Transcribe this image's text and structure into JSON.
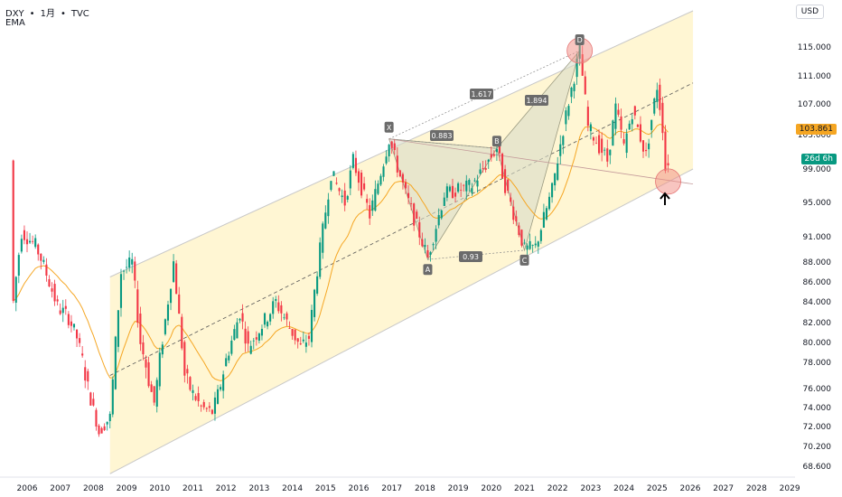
{
  "header": {
    "symbol": "DXY",
    "sep": "•",
    "interval": "1月",
    "source": "TVC",
    "indicator": "EMA"
  },
  "price_unit": "USD",
  "badges": {
    "last_price": "103.861",
    "countdown": "26d 6h"
  },
  "colors": {
    "up": "#26a69a",
    "up_bright": "#089981",
    "down": "#f23645",
    "ema": "#f5a623",
    "channel_fill": "#fff3c4",
    "pattern_fill": "#d9dcc8",
    "circle": "#f28b82"
  },
  "pattern_labels": [
    "X",
    "A",
    "B",
    "C",
    "D"
  ],
  "ratio_labels": [
    "0.883",
    "1.617",
    "1.894",
    "0.93"
  ],
  "chart_data": {
    "type": "candlestick",
    "x_ticks": [
      "2006",
      "2007",
      "2008",
      "2009",
      "2010",
      "2011",
      "2012",
      "2013",
      "2014",
      "2015",
      "2016",
      "2017",
      "2018",
      "2019",
      "2020",
      "2021",
      "2022",
      "2023",
      "2024",
      "2025",
      "2026",
      "2027",
      "2028",
      "2029"
    ],
    "y_ticks": [
      "68.600",
      "70.200",
      "72.000",
      "74.000",
      "76.000",
      "78.000",
      "80.000",
      "82.000",
      "84.000",
      "86.000",
      "88.000",
      "91.000",
      "95.000",
      "99.000",
      "103.000",
      "107.000",
      "111.000",
      "115.000"
    ],
    "ylim": [
      68.0,
      118.5
    ],
    "price_path": [
      {
        "t": "2005-08",
        "p": 84.0
      },
      {
        "t": "2005-11",
        "p": 91.5
      },
      {
        "t": "2006-04",
        "p": 90.0
      },
      {
        "t": "2006-09",
        "p": 86.0
      },
      {
        "t": "2006-12",
        "p": 83.5
      },
      {
        "t": "2007-04",
        "p": 82.5
      },
      {
        "t": "2007-07",
        "p": 80.5
      },
      {
        "t": "2007-11",
        "p": 76.0
      },
      {
        "t": "2008-03",
        "p": 71.5
      },
      {
        "t": "2008-07",
        "p": 73.0
      },
      {
        "t": "2008-11",
        "p": 87.0
      },
      {
        "t": "2009-03",
        "p": 88.0
      },
      {
        "t": "2009-06",
        "p": 80.0
      },
      {
        "t": "2009-11",
        "p": 74.5
      },
      {
        "t": "2010-06",
        "p": 88.0
      },
      {
        "t": "2010-10",
        "p": 77.0
      },
      {
        "t": "2011-04",
        "p": 74.0
      },
      {
        "t": "2011-08",
        "p": 73.5
      },
      {
        "t": "2012-06",
        "p": 83.0
      },
      {
        "t": "2012-09",
        "p": 79.5
      },
      {
        "t": "2013-07",
        "p": 84.0
      },
      {
        "t": "2014-04",
        "p": 79.5
      },
      {
        "t": "2014-07",
        "p": 80.5
      },
      {
        "t": "2015-03",
        "p": 98.5
      },
      {
        "t": "2015-08",
        "p": 95.0
      },
      {
        "t": "2015-11",
        "p": 100.0
      },
      {
        "t": "2016-05",
        "p": 93.5
      },
      {
        "t": "2016-12",
        "p": 102.5
      },
      {
        "t": "2017-06",
        "p": 96.0
      },
      {
        "t": "2018-02",
        "p": 88.5
      },
      {
        "t": "2018-08",
        "p": 96.0
      },
      {
        "t": "2019-06",
        "p": 97.0
      },
      {
        "t": "2020-03",
        "p": 101.5
      },
      {
        "t": "2020-06",
        "p": 97.0
      },
      {
        "t": "2021-01",
        "p": 89.5
      },
      {
        "t": "2021-05",
        "p": 89.8
      },
      {
        "t": "2021-11",
        "p": 96.5
      },
      {
        "t": "2022-09",
        "p": 114.5
      },
      {
        "t": "2022-12",
        "p": 104.0
      },
      {
        "t": "2023-07",
        "p": 100.0
      },
      {
        "t": "2023-10",
        "p": 106.5
      },
      {
        "t": "2024-01",
        "p": 101.5
      },
      {
        "t": "2024-04",
        "p": 106.0
      },
      {
        "t": "2024-09",
        "p": 100.5
      },
      {
        "t": "2025-01",
        "p": 109.5
      },
      {
        "t": "2025-03",
        "p": 104.0
      },
      {
        "t": "2025-04",
        "p": 99.0
      },
      {
        "t": "2025-05",
        "p": 100.0
      }
    ],
    "pattern": {
      "X": {
        "t": "2016-12",
        "p": 102.5
      },
      "A": {
        "t": "2018-02",
        "p": 88.3
      },
      "B": {
        "t": "2020-03",
        "p": 101.4
      },
      "C": {
        "t": "2021-01",
        "p": 89.4
      },
      "D": {
        "t": "2022-09",
        "p": 114.5
      }
    },
    "channel": {
      "lower": [
        {
          "t": "2008-07",
          "p": 68.0
        },
        {
          "t": "2026-02",
          "p": 99.0
        }
      ],
      "upper": [
        {
          "t": "2008-07",
          "p": 86.5
        },
        {
          "t": "2026-02",
          "p": 120.0
        }
      ],
      "mid": [
        {
          "t": "2008-07",
          "p": 77.0
        },
        {
          "t": "2026-02",
          "p": 110.0
        }
      ]
    },
    "circles": [
      {
        "t": "2022-09",
        "p": 114.5
      },
      {
        "t": "2025-05",
        "p": 97.5
      }
    ]
  }
}
